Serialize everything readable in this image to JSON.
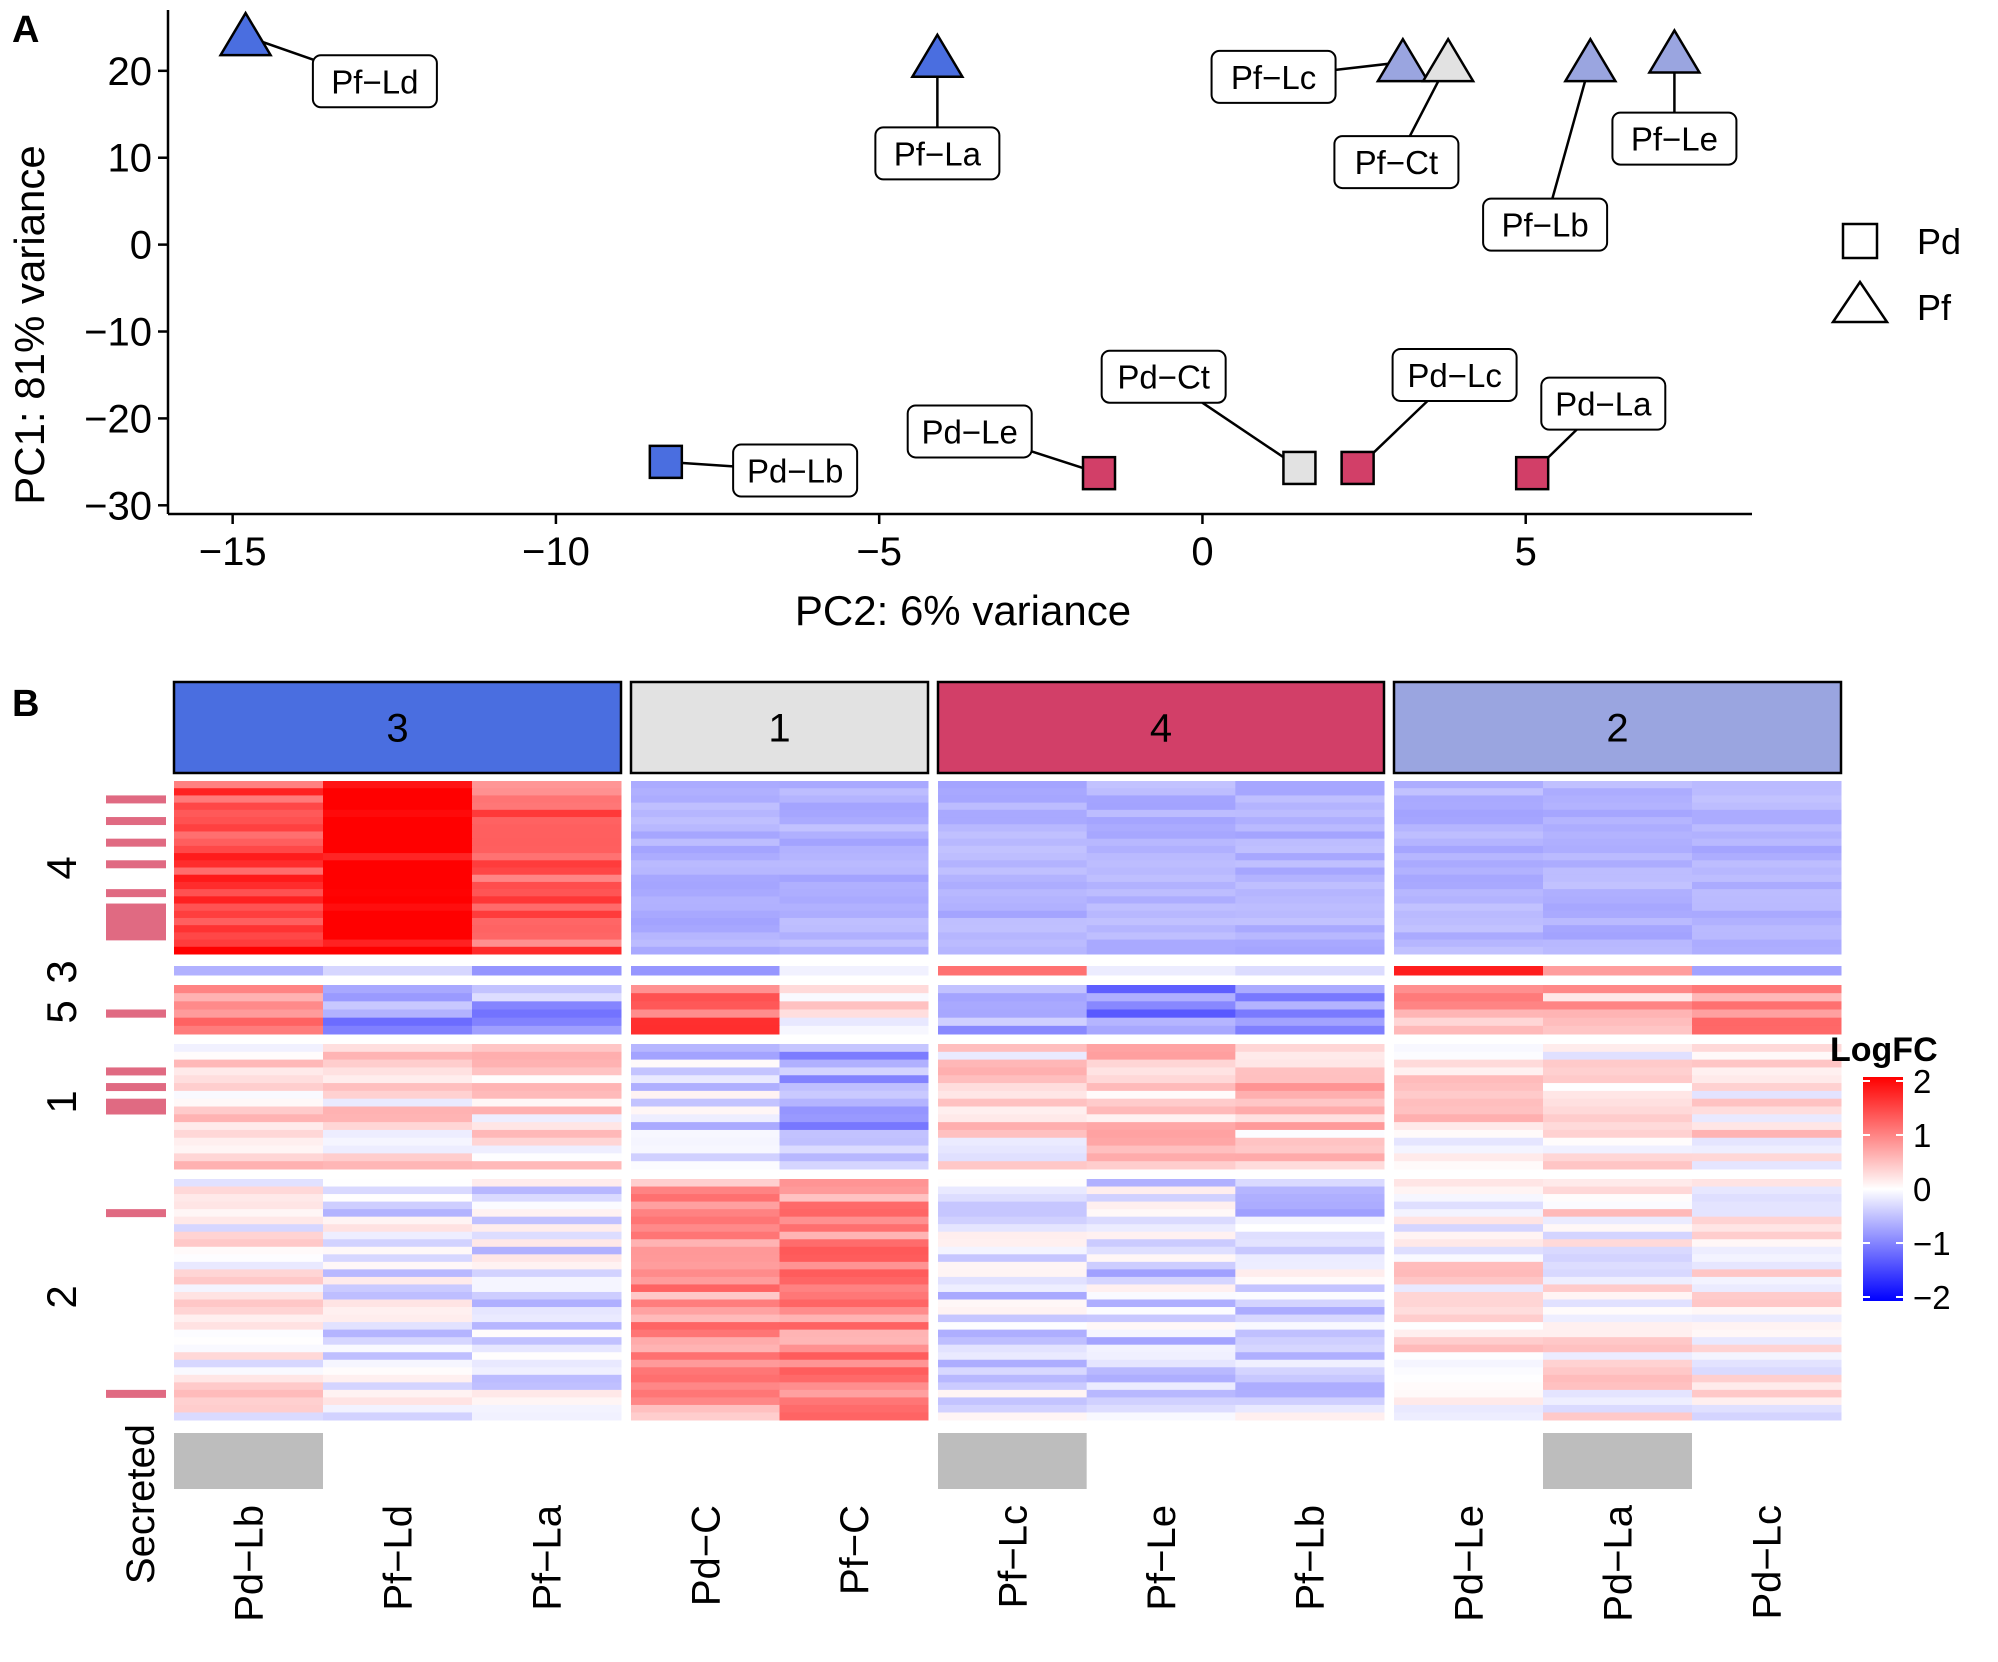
{
  "colors": {
    "cluster_3": "#4a6ee0",
    "cluster_1": "#e2e2e2",
    "cluster_4": "#d23f68",
    "cluster_2": "#9aa5e0",
    "module_marker": "#e06a82",
    "secreted": "#bdbdbd",
    "heat_high": "#ff0000",
    "heat_mid": "#ffffff",
    "heat_low": "#0000ff"
  },
  "chart_data": [
    {
      "panel_label": "A",
      "type": "scatter",
      "title": "",
      "xlabel": "PC2: 6% variance",
      "ylabel": "PC1: 81% variance",
      "xlim": [
        -16,
        8.5
      ],
      "ylim": [
        -31,
        27
      ],
      "x_ticks": [
        -15,
        -10,
        -5,
        0,
        5
      ],
      "x_tick_labels": [
        "−15",
        "−10",
        "−5",
        "0",
        "5"
      ],
      "y_ticks": [
        -30,
        -20,
        -10,
        0,
        10,
        20
      ],
      "y_tick_labels": [
        "−30",
        "−20",
        "−10",
        "0",
        "10",
        "20"
      ],
      "legend": {
        "placement": "right",
        "entries": [
          {
            "label": "Pd",
            "shape": "square"
          },
          {
            "label": "Pf",
            "shape": "triangle"
          }
        ]
      },
      "points": [
        {
          "label": "Pf−Ld",
          "x": -14.8,
          "y": 24.0,
          "shape": "triangle",
          "cluster": "3",
          "label_x": -12.8,
          "label_y": 18.8
        },
        {
          "label": "Pf−La",
          "x": -4.1,
          "y": 21.5,
          "shape": "triangle",
          "cluster": "3",
          "label_x": -4.1,
          "label_y": 10.5
        },
        {
          "label": "Pf−Lc",
          "x": 3.1,
          "y": 21.0,
          "shape": "triangle",
          "cluster": "2",
          "label_x": 1.1,
          "label_y": 19.3
        },
        {
          "label": "Pf−Ct",
          "x": 3.8,
          "y": 21.0,
          "shape": "triangle",
          "cluster": "1",
          "label_x": 3.0,
          "label_y": 9.5
        },
        {
          "label": "Pf−Lb",
          "x": 6.0,
          "y": 21.0,
          "shape": "triangle",
          "cluster": "2",
          "label_x": 5.3,
          "label_y": 2.3
        },
        {
          "label": "Pf−Le",
          "x": 7.3,
          "y": 22.0,
          "shape": "triangle",
          "cluster": "2",
          "label_x": 7.3,
          "label_y": 12.2
        },
        {
          "label": "Pd−Lb",
          "x": -8.3,
          "y": -25.0,
          "shape": "square",
          "cluster": "3",
          "label_x": -6.3,
          "label_y": -26.0
        },
        {
          "label": "Pd−Le",
          "x": -1.6,
          "y": -26.3,
          "shape": "square",
          "cluster": "4",
          "label_x": -3.6,
          "label_y": -21.5
        },
        {
          "label": "Pd−Ct",
          "x": 1.5,
          "y": -25.7,
          "shape": "square",
          "cluster": "1",
          "label_x": -0.6,
          "label_y": -15.2
        },
        {
          "label": "Pd−Lc",
          "x": 2.4,
          "y": -25.7,
          "shape": "square",
          "cluster": "4",
          "label_x": 3.9,
          "label_y": -15.0
        },
        {
          "label": "Pd−La",
          "x": 5.1,
          "y": -26.3,
          "shape": "square",
          "cluster": "4",
          "label_x": 6.2,
          "label_y": -18.3
        }
      ]
    },
    {
      "panel_label": "B",
      "type": "heatmap",
      "legend_title": "LogFC",
      "legend_range": [
        -2,
        2
      ],
      "legend_ticks": [
        2,
        1,
        0,
        -1,
        -2
      ],
      "legend_tick_labels": [
        "2",
        "1",
        "0",
        "−1",
        "−2"
      ],
      "column_groups": [
        {
          "label": "3",
          "cluster": "3",
          "columns": [
            "Pd−Lb",
            "Pf−Ld",
            "Pf−La"
          ]
        },
        {
          "label": "1",
          "cluster": "1",
          "columns": [
            "Pd−C",
            "Pf−C"
          ]
        },
        {
          "label": "4",
          "cluster": "4",
          "columns": [
            "Pf−Lc",
            "Pf−Le",
            "Pf−Lb"
          ]
        },
        {
          "label": "2",
          "cluster": "2",
          "columns": [
            "Pd−Le",
            "Pd−La",
            "Pd−Lc"
          ]
        }
      ],
      "row_annotation_label": "Secreted",
      "secreted_columns": [
        "Pd−Lb",
        "Pf−Lc",
        "Pd−La"
      ],
      "row_modules": [
        {
          "label": "4",
          "rows": 24,
          "profile": [
            1.4,
            2.1,
            1.2,
            -0.6,
            -0.6,
            -0.6,
            -0.6,
            -0.6,
            -0.6,
            -0.6,
            -0.6
          ],
          "secreted_rows": [
            2,
            5,
            8,
            11,
            15,
            17,
            18,
            19,
            20,
            21
          ]
        },
        {
          "label": "3",
          "rows": 1,
          "profile": [
            -0.4,
            -0.4,
            -0.4,
            -0.4,
            -0.4,
            1.0,
            -0.4,
            -0.4,
            2.0,
            0.5,
            -0.3
          ],
          "secreted_rows": []
        },
        {
          "label": "5",
          "rows": 6,
          "profile": [
            0.9,
            -0.8,
            -0.7,
            1.3,
            0.1,
            -0.8,
            -0.9,
            -0.9,
            0.7,
            0.6,
            0.9
          ],
          "secreted_rows": [
            3
          ]
        },
        {
          "label": "1",
          "rows": 16,
          "profile": [
            0.2,
            0.2,
            0.2,
            -0.3,
            -0.7,
            0.2,
            0.4,
            0.4,
            0.2,
            0.1,
            0.2
          ],
          "secreted_rows": [
            3,
            5,
            7,
            8
          ]
        },
        {
          "label": "2",
          "rows": 32,
          "profile": [
            0.1,
            -0.2,
            -0.2,
            0.8,
            0.9,
            -0.3,
            -0.3,
            -0.3,
            0.1,
            0.1,
            0.1
          ],
          "secreted_rows": [
            4,
            28
          ]
        }
      ]
    }
  ]
}
